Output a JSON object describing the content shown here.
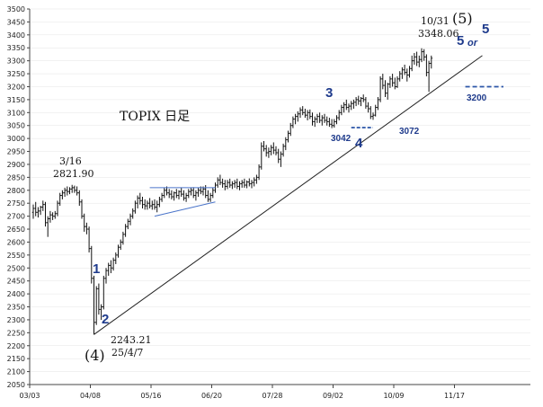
{
  "chart_data": {
    "type": "ohlc",
    "title": "TOPIX 日足",
    "ylim": [
      2050,
      3500
    ],
    "yticks": [
      2050,
      2100,
      2150,
      2200,
      2250,
      2300,
      2350,
      2400,
      2450,
      2500,
      2550,
      2600,
      2650,
      2700,
      2750,
      2800,
      2850,
      2900,
      2950,
      3000,
      3050,
      3100,
      3150,
      3200,
      3250,
      3300,
      3350,
      3400,
      3450,
      3500
    ],
    "x_tick_labels": [
      "03/03",
      "04/08",
      "05/16",
      "06/20",
      "07/28",
      "09/02",
      "10/09",
      "11/17"
    ],
    "x_tick_index": [
      0,
      25,
      50,
      75,
      100,
      125,
      150,
      175
    ],
    "series": [
      {
        "values": [
          [
            2715,
            2745,
            2690,
            2730
          ],
          [
            2730,
            2755,
            2700,
            2715
          ],
          [
            2715,
            2735,
            2695,
            2720
          ],
          [
            2720,
            2740,
            2705,
            2735
          ],
          [
            2735,
            2760,
            2720,
            2745
          ],
          [
            2745,
            2755,
            2660,
            2675
          ],
          [
            2675,
            2700,
            2620,
            2690
          ],
          [
            2690,
            2720,
            2675,
            2705
          ],
          [
            2705,
            2715,
            2685,
            2700
          ],
          [
            2700,
            2720,
            2690,
            2710
          ],
          [
            2710,
            2760,
            2700,
            2750
          ],
          [
            2750,
            2790,
            2740,
            2780
          ],
          [
            2780,
            2800,
            2765,
            2790
          ],
          [
            2790,
            2810,
            2775,
            2800
          ],
          [
            2800,
            2815,
            2780,
            2795
          ],
          [
            2795,
            2812,
            2785,
            2805
          ],
          [
            2805,
            2821,
            2790,
            2810
          ],
          [
            2810,
            2818,
            2790,
            2800
          ],
          [
            2800,
            2815,
            2780,
            2790
          ],
          [
            2790,
            2800,
            2740,
            2755
          ],
          [
            2755,
            2765,
            2690,
            2700
          ],
          [
            2700,
            2710,
            2640,
            2660
          ],
          [
            2660,
            2675,
            2630,
            2650
          ],
          [
            2650,
            2660,
            2560,
            2575
          ],
          [
            2575,
            2585,
            2440,
            2460
          ],
          [
            2460,
            2470,
            2243,
            2290
          ],
          [
            2290,
            2430,
            2280,
            2420
          ],
          [
            2420,
            2440,
            2320,
            2340
          ],
          [
            2340,
            2360,
            2300,
            2350
          ],
          [
            2350,
            2470,
            2340,
            2460
          ],
          [
            2460,
            2500,
            2440,
            2490
          ],
          [
            2490,
            2520,
            2470,
            2510
          ],
          [
            2510,
            2530,
            2480,
            2500
          ],
          [
            2500,
            2540,
            2490,
            2530
          ],
          [
            2530,
            2560,
            2515,
            2550
          ],
          [
            2550,
            2590,
            2540,
            2580
          ],
          [
            2580,
            2610,
            2570,
            2600
          ],
          [
            2600,
            2640,
            2590,
            2630
          ],
          [
            2630,
            2670,
            2620,
            2660
          ],
          [
            2660,
            2690,
            2650,
            2680
          ],
          [
            2680,
            2710,
            2665,
            2700
          ],
          [
            2700,
            2730,
            2690,
            2720
          ],
          [
            2720,
            2760,
            2710,
            2750
          ],
          [
            2750,
            2780,
            2730,
            2770
          ],
          [
            2770,
            2790,
            2745,
            2760
          ],
          [
            2760,
            2775,
            2730,
            2745
          ],
          [
            2745,
            2765,
            2725,
            2740
          ],
          [
            2740,
            2760,
            2725,
            2750
          ],
          [
            2750,
            2770,
            2730,
            2740
          ],
          [
            2740,
            2760,
            2725,
            2745
          ],
          [
            2745,
            2765,
            2725,
            2735
          ],
          [
            2735,
            2760,
            2715,
            2745
          ],
          [
            2745,
            2775,
            2735,
            2765
          ],
          [
            2765,
            2790,
            2755,
            2780
          ],
          [
            2780,
            2810,
            2770,
            2800
          ],
          [
            2800,
            2815,
            2780,
            2790
          ],
          [
            2790,
            2805,
            2770,
            2785
          ],
          [
            2785,
            2800,
            2765,
            2775
          ],
          [
            2775,
            2795,
            2760,
            2790
          ],
          [
            2790,
            2805,
            2770,
            2780
          ],
          [
            2780,
            2800,
            2765,
            2795
          ],
          [
            2795,
            2810,
            2775,
            2785
          ],
          [
            2785,
            2800,
            2760,
            2770
          ],
          [
            2770,
            2790,
            2755,
            2780
          ],
          [
            2780,
            2805,
            2770,
            2795
          ],
          [
            2795,
            2810,
            2780,
            2800
          ],
          [
            2800,
            2812,
            2770,
            2780
          ],
          [
            2780,
            2800,
            2760,
            2790
          ],
          [
            2790,
            2810,
            2775,
            2800
          ],
          [
            2800,
            2815,
            2785,
            2795
          ],
          [
            2795,
            2815,
            2780,
            2805
          ],
          [
            2805,
            2820,
            2770,
            2780
          ],
          [
            2780,
            2800,
            2755,
            2765
          ],
          [
            2765,
            2790,
            2755,
            2780
          ],
          [
            2780,
            2810,
            2770,
            2800
          ],
          [
            2800,
            2830,
            2790,
            2820
          ],
          [
            2820,
            2850,
            2810,
            2840
          ],
          [
            2840,
            2860,
            2820,
            2830
          ],
          [
            2830,
            2845,
            2810,
            2825
          ],
          [
            2825,
            2840,
            2800,
            2815
          ],
          [
            2815,
            2840,
            2805,
            2830
          ],
          [
            2830,
            2845,
            2810,
            2820
          ],
          [
            2820,
            2835,
            2805,
            2825
          ],
          [
            2825,
            2840,
            2810,
            2830
          ],
          [
            2830,
            2845,
            2805,
            2815
          ],
          [
            2815,
            2835,
            2800,
            2825
          ],
          [
            2825,
            2840,
            2810,
            2830
          ],
          [
            2830,
            2845,
            2810,
            2820
          ],
          [
            2820,
            2838,
            2808,
            2832
          ],
          [
            2832,
            2846,
            2815,
            2825
          ],
          [
            2825,
            2840,
            2808,
            2830
          ],
          [
            2830,
            2850,
            2815,
            2840
          ],
          [
            2840,
            2860,
            2825,
            2850
          ],
          [
            2850,
            2900,
            2840,
            2890
          ],
          [
            2890,
            2985,
            2880,
            2970
          ],
          [
            2970,
            2990,
            2950,
            2960
          ],
          [
            2960,
            2975,
            2930,
            2945
          ],
          [
            2945,
            2965,
            2925,
            2950
          ],
          [
            2950,
            2975,
            2935,
            2965
          ],
          [
            2965,
            2985,
            2940,
            2955
          ],
          [
            2955,
            2970,
            2935,
            2945
          ],
          [
            2945,
            2960,
            2905,
            2920
          ],
          [
            2920,
            2950,
            2890,
            2940
          ],
          [
            2940,
            2980,
            2930,
            2970
          ],
          [
            2970,
            3005,
            2955,
            2995
          ],
          [
            2995,
            3030,
            2985,
            3020
          ],
          [
            3020,
            3060,
            3010,
            3050
          ],
          [
            3050,
            3085,
            3040,
            3075
          ],
          [
            3075,
            3095,
            3055,
            3085
          ],
          [
            3085,
            3105,
            3065,
            3095
          ],
          [
            3095,
            3120,
            3080,
            3110
          ],
          [
            3110,
            3125,
            3090,
            3100
          ],
          [
            3100,
            3115,
            3080,
            3090
          ],
          [
            3090,
            3110,
            3070,
            3100
          ],
          [
            3100,
            3112,
            3075,
            3085
          ],
          [
            3085,
            3100,
            3050,
            3065
          ],
          [
            3065,
            3085,
            3045,
            3075
          ],
          [
            3075,
            3095,
            3060,
            3085
          ],
          [
            3085,
            3100,
            3060,
            3070
          ],
          [
            3070,
            3090,
            3050,
            3080
          ],
          [
            3080,
            3095,
            3060,
            3070
          ],
          [
            3070,
            3085,
            3050,
            3065
          ],
          [
            3065,
            3080,
            3045,
            3055
          ],
          [
            3055,
            3075,
            3040,
            3050
          ],
          [
            3050,
            3075,
            3042,
            3065
          ],
          [
            3065,
            3090,
            3055,
            3080
          ],
          [
            3080,
            3110,
            3070,
            3100
          ],
          [
            3100,
            3130,
            3090,
            3120
          ],
          [
            3120,
            3140,
            3100,
            3130
          ],
          [
            3130,
            3150,
            3110,
            3120
          ],
          [
            3120,
            3135,
            3100,
            3125
          ],
          [
            3125,
            3145,
            3110,
            3135
          ],
          [
            3135,
            3150,
            3115,
            3140
          ],
          [
            3140,
            3160,
            3125,
            3150
          ],
          [
            3150,
            3165,
            3130,
            3145
          ],
          [
            3145,
            3160,
            3125,
            3155
          ],
          [
            3155,
            3170,
            3140,
            3150
          ],
          [
            3150,
            3160,
            3115,
            3125
          ],
          [
            3125,
            3140,
            3100,
            3115
          ],
          [
            3115,
            3125,
            3075,
            3085
          ],
          [
            3085,
            3100,
            3072,
            3090
          ],
          [
            3090,
            3130,
            3085,
            3120
          ],
          [
            3120,
            3160,
            3110,
            3150
          ],
          [
            3150,
            3240,
            3140,
            3230
          ],
          [
            3230,
            3250,
            3190,
            3205
          ],
          [
            3205,
            3225,
            3160,
            3175
          ],
          [
            3175,
            3215,
            3150,
            3210
          ],
          [
            3210,
            3240,
            3195,
            3230
          ],
          [
            3230,
            3250,
            3200,
            3215
          ],
          [
            3215,
            3235,
            3190,
            3200
          ],
          [
            3200,
            3240,
            3195,
            3230
          ],
          [
            3230,
            3260,
            3220,
            3250
          ],
          [
            3250,
            3275,
            3230,
            3265
          ],
          [
            3265,
            3285,
            3245,
            3255
          ],
          [
            3255,
            3270,
            3220,
            3245
          ],
          [
            3245,
            3280,
            3235,
            3270
          ],
          [
            3270,
            3320,
            3260,
            3300
          ],
          [
            3300,
            3330,
            3285,
            3315
          ],
          [
            3315,
            3335,
            3280,
            3295
          ],
          [
            3295,
            3320,
            3275,
            3305
          ],
          [
            3305,
            3348.06,
            3295,
            3335
          ],
          [
            3335,
            3345,
            3300,
            3315
          ],
          [
            3315,
            3325,
            3240,
            3255
          ],
          [
            3255,
            3300,
            3180,
            3290
          ],
          [
            3290,
            3320,
            3270,
            3310
          ]
        ]
      }
    ],
    "trendline": [
      [
        25,
        2243.21
      ],
      [
        185,
        3320
      ]
    ],
    "support_level": 3200,
    "triangle": {
      "upper": [
        [
          48,
          2810
        ],
        [
          75,
          2810
        ]
      ],
      "lower": [
        [
          50,
          2700
        ],
        [
          75,
          2755
        ]
      ]
    },
    "annotations": {
      "mar16_date": "3/16",
      "mar16_value": "2821.90",
      "low_value": "2243.21",
      "low_date": "25/4/7",
      "wave4_paren": "(4)",
      "high_date": "10/31",
      "wave5_paren": "(5)",
      "high_value": "3348.06",
      "w1": "1",
      "w2": "2",
      "w3": "3",
      "w4": "4",
      "w5": "5",
      "or_text": "or",
      "w5_alt": "5",
      "lvl_3042": "3042",
      "lvl_3072": "3072",
      "lvl_3200": "3200"
    }
  },
  "colors": {
    "bars": "#111111",
    "trendline": "#222222",
    "wave_labels": "#1f3b8c",
    "support_dash": "#2b55a8",
    "triangle": "#4a74c9",
    "grid": "#dddddd"
  }
}
